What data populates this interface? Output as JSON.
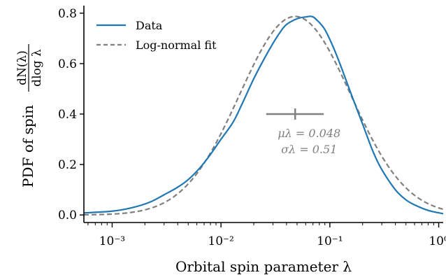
{
  "chart_data": {
    "type": "line",
    "xscale": "log",
    "xlim": [
      0.00055,
      1.1
    ],
    "ylim": [
      -0.03,
      0.83
    ],
    "xlabel": "Orbital spin parameter λ",
    "ylabel_prefix": "PDF of spin",
    "ylabel_num": "dN(λ)",
    "ylabel_den": "dlog λ",
    "yticks": [
      0.0,
      0.2,
      0.4,
      0.6,
      0.8
    ],
    "ytick_labels": [
      "0.0",
      "0.2",
      "0.4",
      "0.6",
      "0.8"
    ],
    "xticks": [
      0.001,
      0.01,
      0.1,
      1.0
    ],
    "xtick_labels": [
      "10⁻³",
      "10⁻²",
      "10⁻¹",
      "10⁰"
    ],
    "legend_position": "upper-left",
    "series": [
      {
        "name": "Data",
        "color": "#1f77b4",
        "style": "solid",
        "x": [
          0.00055,
          0.001,
          0.0015,
          0.0022,
          0.003,
          0.004,
          0.005,
          0.0065,
          0.008,
          0.01,
          0.013,
          0.016,
          0.02,
          0.025,
          0.03,
          0.035,
          0.04,
          0.05,
          0.06,
          0.068,
          0.075,
          0.09,
          0.11,
          0.13,
          0.16,
          0.2,
          0.25,
          0.3,
          0.4,
          0.5,
          0.6,
          0.8,
          1.1
        ],
        "y": [
          0.008,
          0.015,
          0.028,
          0.05,
          0.08,
          0.11,
          0.14,
          0.19,
          0.24,
          0.3,
          0.37,
          0.45,
          0.54,
          0.62,
          0.68,
          0.725,
          0.755,
          0.778,
          0.785,
          0.787,
          0.775,
          0.735,
          0.655,
          0.575,
          0.47,
          0.36,
          0.25,
          0.18,
          0.1,
          0.06,
          0.04,
          0.018,
          0.005
        ]
      },
      {
        "name": "Log-normal fit",
        "color": "#808080",
        "style": "dashed",
        "mu": 0.048,
        "sigma": 0.51,
        "peak": 0.787
      }
    ],
    "annotation": {
      "center": 0.048,
      "range": [
        0.026,
        0.088
      ],
      "y": 0.4,
      "label_mu": "μλ = 0.048",
      "label_sigma": "σλ = 0.51",
      "color": "#808080"
    }
  }
}
